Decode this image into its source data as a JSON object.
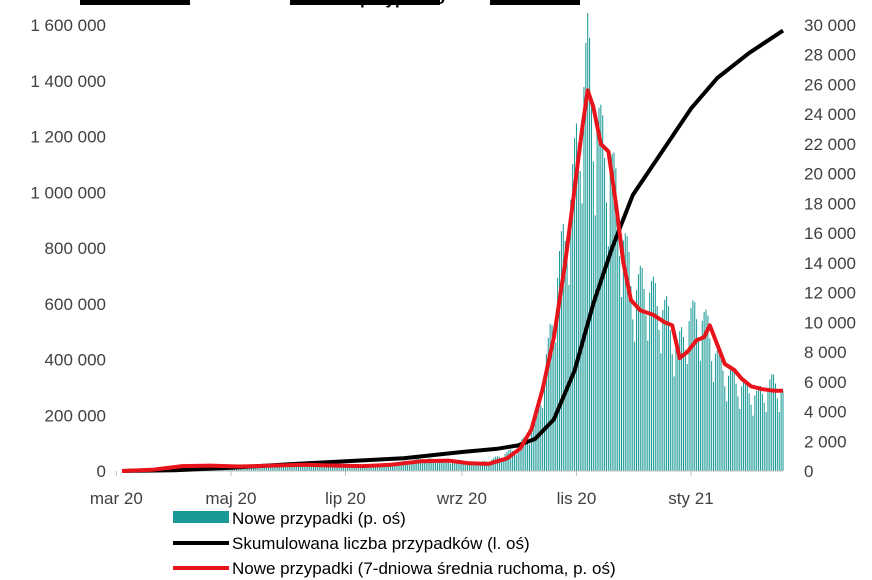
{
  "chart_data": {
    "type": "bar",
    "left_axis": {
      "min": 0,
      "max": 1600000,
      "ticks": [
        0,
        200000,
        400000,
        600000,
        800000,
        1000000,
        1200000,
        1400000,
        1600000
      ],
      "tick_labels": [
        "0",
        "200 000",
        "400 000",
        "600 000",
        "800 000",
        "1 000 000",
        "1 200 000",
        "1 400 000",
        "1 600 000"
      ]
    },
    "right_axis": {
      "min": 0,
      "max": 30000,
      "ticks": [
        0,
        2000,
        4000,
        6000,
        8000,
        10000,
        12000,
        14000,
        16000,
        18000,
        20000,
        22000,
        24000,
        26000,
        28000,
        30000
      ],
      "tick_labels": [
        "0",
        "2 000",
        "4 000",
        "6 000",
        "8 000",
        "10 000",
        "12 000",
        "14 000",
        "16 000",
        "18 000",
        "20 000",
        "22 000",
        "24 000",
        "26 000",
        "28 000",
        "30 000"
      ]
    },
    "x_axis": {
      "start": "2020-03-04",
      "end": "2021-02-19",
      "ticks": [
        "2020-03-01",
        "2020-05-01",
        "2020-07-01",
        "2020-09-01",
        "2020-11-01",
        "2021-01-01"
      ],
      "tick_labels": [
        "mar 20",
        "maj 20",
        "lip 20",
        "wrz 20",
        "lis 20",
        "sty 21"
      ]
    },
    "series": [
      {
        "name": "Nowe przypadki (p. oś)",
        "axis": "right",
        "kind": "bar",
        "color": "#1a9a96",
        "points": [
          [
            "2020-03-04",
            0
          ],
          [
            "2020-03-15",
            25
          ],
          [
            "2020-04-01",
            300
          ],
          [
            "2020-04-15",
            350
          ],
          [
            "2020-05-01",
            320
          ],
          [
            "2020-05-15",
            330
          ],
          [
            "2020-06-01",
            400
          ],
          [
            "2020-06-10",
            580
          ],
          [
            "2020-06-20",
            420
          ],
          [
            "2020-07-01",
            320
          ],
          [
            "2020-07-15",
            300
          ],
          [
            "2020-08-01",
            600
          ],
          [
            "2020-08-10",
            800
          ],
          [
            "2020-08-25",
            700
          ],
          [
            "2020-09-10",
            500
          ],
          [
            "2020-09-20",
            900
          ],
          [
            "2020-09-30",
            1500
          ],
          [
            "2020-10-07",
            2500
          ],
          [
            "2020-10-12",
            4500
          ],
          [
            "2020-10-17",
            8000
          ],
          [
            "2020-10-22",
            13000
          ],
          [
            "2020-10-27",
            16500
          ],
          [
            "2020-10-31",
            20000
          ],
          [
            "2020-11-04",
            25000
          ],
          [
            "2020-11-07",
            27500
          ],
          [
            "2020-11-10",
            24500
          ],
          [
            "2020-11-14",
            22000
          ],
          [
            "2020-11-18",
            21000
          ],
          [
            "2020-11-22",
            18500
          ],
          [
            "2020-11-26",
            15500
          ],
          [
            "2020-12-01",
            12000
          ],
          [
            "2020-12-07",
            12500
          ],
          [
            "2020-12-13",
            11500
          ],
          [
            "2020-12-19",
            10500
          ],
          [
            "2020-12-25",
            8000
          ],
          [
            "2020-12-30",
            10000
          ],
          [
            "2021-01-05",
            10500
          ],
          [
            "2021-01-10",
            9500
          ],
          [
            "2021-01-15",
            7500
          ],
          [
            "2021-01-20",
            6500
          ],
          [
            "2021-01-25",
            6000
          ],
          [
            "2021-01-30",
            5500
          ],
          [
            "2021-02-05",
            5000
          ],
          [
            "2021-02-10",
            5500
          ],
          [
            "2021-02-15",
            6000
          ],
          [
            "2021-02-19",
            5000
          ]
        ]
      },
      {
        "name": "Skumulowana liczba przypadków (l. oś)",
        "axis": "left",
        "kind": "line",
        "color": "#000000",
        "points": [
          [
            "2020-03-04",
            0
          ],
          [
            "2020-04-01",
            2500
          ],
          [
            "2020-05-01",
            12000
          ],
          [
            "2020-06-01",
            24000
          ],
          [
            "2020-07-01",
            35000
          ],
          [
            "2020-08-01",
            46000
          ],
          [
            "2020-09-01",
            68000
          ],
          [
            "2020-09-20",
            80000
          ],
          [
            "2020-10-01",
            92000
          ],
          [
            "2020-10-10",
            115000
          ],
          [
            "2020-10-20",
            185000
          ],
          [
            "2020-10-31",
            360000
          ],
          [
            "2020-11-10",
            600000
          ],
          [
            "2020-11-20",
            800000
          ],
          [
            "2020-12-01",
            990000
          ],
          [
            "2020-12-15",
            1130000
          ],
          [
            "2021-01-01",
            1300000
          ],
          [
            "2021-01-15",
            1410000
          ],
          [
            "2021-02-01",
            1500000
          ],
          [
            "2021-02-19",
            1580000
          ]
        ]
      },
      {
        "name": "Nowe przypadki (7-dniowa średnia ruchoma, p. oś)",
        "axis": "right",
        "kind": "line",
        "color": "#e8141b",
        "points": [
          [
            "2020-03-04",
            0
          ],
          [
            "2020-03-20",
            80
          ],
          [
            "2020-04-05",
            330
          ],
          [
            "2020-04-20",
            360
          ],
          [
            "2020-05-05",
            300
          ],
          [
            "2020-05-20",
            350
          ],
          [
            "2020-06-10",
            420
          ],
          [
            "2020-06-20",
            380
          ],
          [
            "2020-07-10",
            330
          ],
          [
            "2020-07-25",
            420
          ],
          [
            "2020-08-10",
            650
          ],
          [
            "2020-08-25",
            700
          ],
          [
            "2020-09-05",
            520
          ],
          [
            "2020-09-15",
            480
          ],
          [
            "2020-09-25",
            850
          ],
          [
            "2020-10-02",
            1500
          ],
          [
            "2020-10-08",
            2800
          ],
          [
            "2020-10-14",
            5500
          ],
          [
            "2020-10-20",
            9000
          ],
          [
            "2020-10-26",
            14000
          ],
          [
            "2020-10-31",
            19000
          ],
          [
            "2020-11-04",
            23000
          ],
          [
            "2020-11-07",
            25600
          ],
          [
            "2020-11-10",
            24500
          ],
          [
            "2020-11-14",
            22000
          ],
          [
            "2020-11-18",
            21500
          ],
          [
            "2020-11-22",
            18000
          ],
          [
            "2020-11-26",
            14000
          ],
          [
            "2020-11-30",
            11500
          ],
          [
            "2020-12-05",
            10800
          ],
          [
            "2020-12-12",
            10500
          ],
          [
            "2020-12-18",
            10000
          ],
          [
            "2020-12-22",
            9800
          ],
          [
            "2020-12-26",
            7600
          ],
          [
            "2020-12-30",
            8000
          ],
          [
            "2021-01-04",
            8800
          ],
          [
            "2021-01-08",
            9000
          ],
          [
            "2021-01-11",
            9800
          ],
          [
            "2021-01-15",
            8500
          ],
          [
            "2021-01-19",
            7200
          ],
          [
            "2021-01-24",
            6800
          ],
          [
            "2021-01-28",
            6200
          ],
          [
            "2021-02-02",
            5700
          ],
          [
            "2021-02-08",
            5500
          ],
          [
            "2021-02-14",
            5400
          ],
          [
            "2021-02-19",
            5400
          ]
        ]
      }
    ],
    "legend": [
      "Nowe przypadki (p. oś)",
      "Skumulowana liczba przypadków (l. oś)",
      "Nowe przypadki (7-dniowa średnia ruchoma, p. oś)"
    ],
    "legend_position": "bottom",
    "grid": false,
    "clipped_title": "przypadkó"
  }
}
